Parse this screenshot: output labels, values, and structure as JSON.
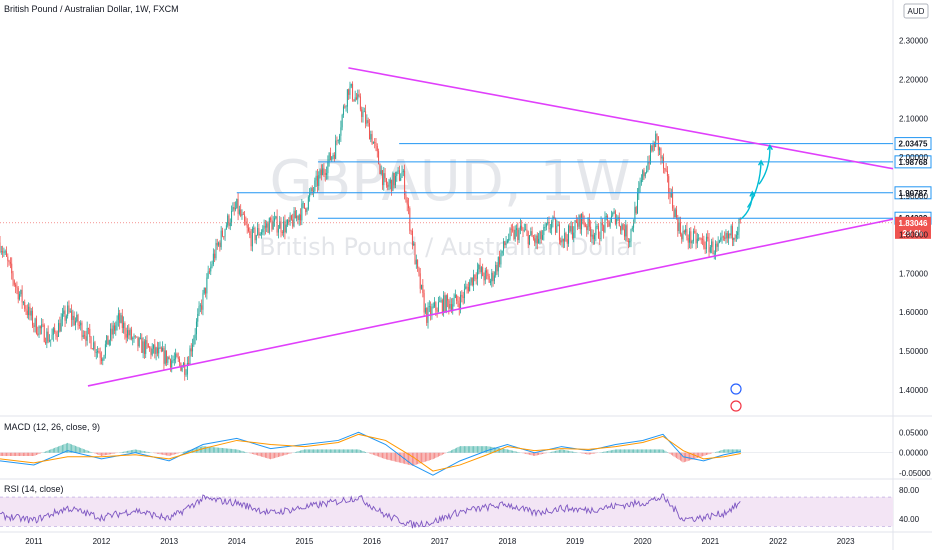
{
  "header": {
    "title": "British Pound / Australian Dollar, 1W, FXCM",
    "currency": "AUD"
  },
  "watermark": {
    "symbol": "GBPAUD, 1W",
    "name": "British Pound / Australian Dollar"
  },
  "colors": {
    "up": "#26a69a",
    "down": "#ef5350",
    "trendline": "#e040fb",
    "hline": "#2196f3",
    "arrow": "#00bcd4",
    "macd": "#2196f3",
    "signal": "#ff9800",
    "rsi": "#7e57c2",
    "rsi_band": "#f3e5f5"
  },
  "chart_data": [
    {
      "type": "line",
      "subtype": "candlestick",
      "title": "British Pound / Australian Dollar, 1W, FXCM",
      "x_ticks": [
        "2011",
        "2012",
        "2013",
        "2014",
        "2015",
        "2016",
        "2017",
        "2018",
        "2019",
        "2020",
        "2021",
        "2022",
        "2023"
      ],
      "x_range": [
        2010.5,
        2023.7
      ],
      "y_ticks": [
        "1.40000",
        "1.50000",
        "1.60000",
        "1.70000",
        "1.80000",
        "1.90000",
        "2.00000",
        "2.10000",
        "2.20000",
        "2.30000"
      ],
      "ylim": [
        1.335,
        2.405
      ],
      "price_path": [
        [
          2010.5,
          1.78
        ],
        [
          2010.75,
          1.66
        ],
        [
          2011.0,
          1.57
        ],
        [
          2011.25,
          1.53
        ],
        [
          2011.5,
          1.6
        ],
        [
          2011.75,
          1.55
        ],
        [
          2012.0,
          1.49
        ],
        [
          2012.25,
          1.58
        ],
        [
          2012.5,
          1.52
        ],
        [
          2012.75,
          1.5
        ],
        [
          2013.0,
          1.48
        ],
        [
          2013.25,
          1.46
        ],
        [
          2013.45,
          1.6
        ],
        [
          2013.65,
          1.74
        ],
        [
          2013.85,
          1.83
        ],
        [
          2014.0,
          1.87
        ],
        [
          2014.2,
          1.79
        ],
        [
          2014.5,
          1.83
        ],
        [
          2014.75,
          1.82
        ],
        [
          2015.0,
          1.87
        ],
        [
          2015.2,
          1.94
        ],
        [
          2015.45,
          2.02
        ],
        [
          2015.65,
          2.18
        ],
        [
          2015.8,
          2.14
        ],
        [
          2016.0,
          2.05
        ],
        [
          2016.2,
          1.92
        ],
        [
          2016.45,
          1.96
        ],
        [
          2016.65,
          1.72
        ],
        [
          2016.8,
          1.59
        ],
        [
          2017.0,
          1.62
        ],
        [
          2017.3,
          1.63
        ],
        [
          2017.55,
          1.71
        ],
        [
          2017.75,
          1.68
        ],
        [
          2018.0,
          1.79
        ],
        [
          2018.2,
          1.81
        ],
        [
          2018.45,
          1.78
        ],
        [
          2018.65,
          1.83
        ],
        [
          2018.85,
          1.79
        ],
        [
          2019.1,
          1.84
        ],
        [
          2019.3,
          1.8
        ],
        [
          2019.6,
          1.85
        ],
        [
          2019.8,
          1.79
        ],
        [
          2020.0,
          1.95
        ],
        [
          2020.2,
          2.05
        ],
        [
          2020.35,
          1.94
        ],
        [
          2020.55,
          1.81
        ],
        [
          2020.7,
          1.79
        ],
        [
          2020.9,
          1.78
        ],
        [
          2021.1,
          1.76
        ],
        [
          2021.3,
          1.8
        ],
        [
          2021.45,
          1.83
        ]
      ],
      "horizontal_levels": [
        {
          "value": 2.03475,
          "label": "2.03475",
          "x_start": 2016.4
        },
        {
          "value": 1.98768,
          "label": "1.98768",
          "x_start": 2015.2
        },
        {
          "value": 1.90787,
          "label": "1.90787",
          "x_start": 2014.0
        },
        {
          "value": 1.84239,
          "label": "1.84239",
          "x_start": 2015.2
        }
      ],
      "current_price": {
        "value": 1.83046,
        "label": "1.83046",
        "countdown": "2d 9h"
      },
      "trendlines": [
        {
          "name": "upper",
          "points": [
            [
              2015.65,
              2.23
            ],
            [
              2023.7,
              1.97
            ]
          ]
        },
        {
          "name": "lower",
          "points": [
            [
              2011.8,
              1.41
            ],
            [
              2023.7,
              1.84
            ]
          ]
        }
      ],
      "projection_arrows": [
        {
          "from": [
            2021.45,
            1.84
          ],
          "to": [
            2021.62,
            1.91
          ]
        },
        {
          "from": [
            2021.55,
            1.87
          ],
          "to": [
            2021.75,
            1.99
          ]
        },
        {
          "from": [
            2021.72,
            1.93
          ],
          "to": [
            2021.88,
            2.03
          ]
        }
      ]
    },
    {
      "type": "line",
      "title": "MACD (12, 26, close, 9)",
      "y_ticks": [
        "0.05000",
        "0.00000",
        "-0.05000"
      ],
      "ylim": [
        -0.062,
        0.085
      ],
      "x": [
        2010.5,
        2011.0,
        2011.5,
        2012.0,
        2012.5,
        2013.0,
        2013.5,
        2014.0,
        2014.5,
        2015.0,
        2015.5,
        2015.8,
        2016.2,
        2016.6,
        2016.9,
        2017.3,
        2017.7,
        2018.0,
        2018.4,
        2018.8,
        2019.2,
        2019.6,
        2020.0,
        2020.3,
        2020.6,
        2020.9,
        2021.2,
        2021.45
      ],
      "series": [
        {
          "name": "MACD",
          "values": [
            -0.02,
            -0.03,
            0.005,
            -0.015,
            0.0,
            -0.02,
            0.02,
            0.035,
            0.01,
            0.02,
            0.03,
            0.05,
            0.02,
            -0.03,
            -0.055,
            -0.02,
            0.005,
            0.02,
            0.0,
            0.015,
            0.005,
            0.02,
            0.03,
            0.045,
            -0.01,
            -0.02,
            -0.005,
            0.003
          ]
        },
        {
          "name": "Signal",
          "values": [
            -0.015,
            -0.025,
            -0.01,
            -0.01,
            -0.005,
            -0.015,
            0.01,
            0.03,
            0.02,
            0.015,
            0.025,
            0.045,
            0.03,
            -0.01,
            -0.045,
            -0.03,
            -0.005,
            0.015,
            0.005,
            0.01,
            0.008,
            0.015,
            0.025,
            0.04,
            0.005,
            -0.015,
            -0.01,
            -0.002
          ]
        }
      ]
    },
    {
      "type": "line",
      "title": "RSI (14, close)",
      "y_ticks": [
        "80.00",
        "40.00"
      ],
      "ylim": [
        25,
        92
      ],
      "band": [
        30,
        70
      ],
      "x": [
        2010.5,
        2011.0,
        2011.5,
        2012.0,
        2012.5,
        2013.0,
        2013.5,
        2014.0,
        2014.5,
        2015.0,
        2015.5,
        2015.8,
        2016.2,
        2016.6,
        2016.9,
        2017.3,
        2017.7,
        2018.0,
        2018.4,
        2018.8,
        2019.2,
        2019.6,
        2020.0,
        2020.3,
        2020.6,
        2020.9,
        2021.2,
        2021.45
      ],
      "series": [
        {
          "name": "RSI",
          "values": [
            45,
            38,
            55,
            42,
            52,
            40,
            68,
            62,
            48,
            56,
            64,
            70,
            45,
            32,
            36,
            50,
            56,
            60,
            48,
            55,
            52,
            58,
            62,
            70,
            40,
            42,
            48,
            62
          ]
        }
      ]
    }
  ]
}
